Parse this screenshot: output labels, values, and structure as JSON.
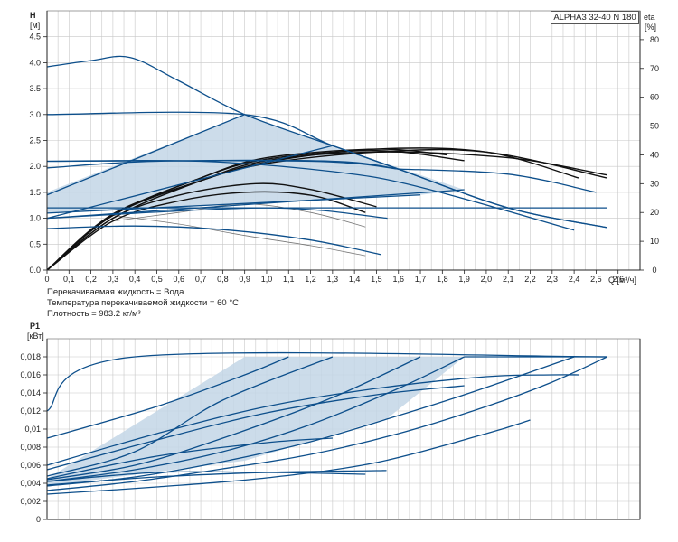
{
  "model": "ALPHA3 32-40 N 180",
  "notes": {
    "liquid": "Перекачиваемая жидкость = Вода",
    "temperature": "Температура перекачиваемой жидкости = 60 °C",
    "density": "Плотность = 983.2 кг/м³"
  },
  "colors": {
    "curve": "#0d4f8b",
    "eta": "#111111",
    "shade": "#c3d6e6",
    "grid": "#c8c8c8"
  },
  "chart_data": [
    {
      "type": "line",
      "xlabel": "Q [м³/ч]",
      "ylabel": "H [м]",
      "y2label": "eta [%]",
      "xlim": [
        0,
        2.7
      ],
      "ylim": [
        0,
        5
      ],
      "y2lim": [
        0,
        90
      ],
      "x_ticks": [
        {
          "v": 0,
          "t": "0"
        },
        {
          "v": 0.1,
          "t": "0,1"
        },
        {
          "v": 0.2,
          "t": "0,2"
        },
        {
          "v": 0.3,
          "t": "0,3"
        },
        {
          "v": 0.4,
          "t": "0,4"
        },
        {
          "v": 0.5,
          "t": "0,5"
        },
        {
          "v": 0.6,
          "t": "0,6"
        },
        {
          "v": 0.7,
          "t": "0,7"
        },
        {
          "v": 0.8,
          "t": "0,8"
        },
        {
          "v": 0.9,
          "t": "0,9"
        },
        {
          "v": 1.0,
          "t": "1,0"
        },
        {
          "v": 1.1,
          "t": "1,1"
        },
        {
          "v": 1.2,
          "t": "1,2"
        },
        {
          "v": 1.3,
          "t": "1,3"
        },
        {
          "v": 1.4,
          "t": "1,4"
        },
        {
          "v": 1.5,
          "t": "1,5"
        },
        {
          "v": 1.6,
          "t": "1,6"
        },
        {
          "v": 1.7,
          "t": "1,7"
        },
        {
          "v": 1.8,
          "t": "1,8"
        },
        {
          "v": 1.9,
          "t": "1,9"
        },
        {
          "v": 2.0,
          "t": "2,0"
        },
        {
          "v": 2.1,
          "t": "2,1"
        },
        {
          "v": 2.2,
          "t": "2,2"
        },
        {
          "v": 2.3,
          "t": "2,3"
        },
        {
          "v": 2.4,
          "t": "2,4"
        },
        {
          "v": 2.5,
          "t": "2,5"
        },
        {
          "v": 2.6,
          "t": "2,6"
        }
      ],
      "y_ticks": [
        {
          "v": 0,
          "t": "0.0"
        },
        {
          "v": 0.5,
          "t": "0.5"
        },
        {
          "v": 1,
          "t": "1.0"
        },
        {
          "v": 1.5,
          "t": "1.5"
        },
        {
          "v": 2,
          "t": "2.0"
        },
        {
          "v": 2.5,
          "t": "2.5"
        },
        {
          "v": 3,
          "t": "3.0"
        },
        {
          "v": 3.5,
          "t": "3.5"
        },
        {
          "v": 4,
          "t": "4.0"
        },
        {
          "v": 4.5,
          "t": "4.5"
        }
      ],
      "y2_ticks": [
        {
          "v": 0,
          "t": "0"
        },
        {
          "v": 10,
          "t": "10"
        },
        {
          "v": 20,
          "t": "20"
        },
        {
          "v": 30,
          "t": "30"
        },
        {
          "v": 40,
          "t": "40"
        },
        {
          "v": 50,
          "t": "50"
        },
        {
          "v": 60,
          "t": "60"
        },
        {
          "v": 70,
          "t": "70"
        },
        {
          "v": 80,
          "t": "80"
        }
      ],
      "shaded_region": [
        [
          0,
          1.0
        ],
        [
          0,
          1.5
        ],
        [
          0.9,
          3.0
        ],
        [
          1.3,
          2.4
        ],
        [
          1.9,
          1.55
        ],
        [
          1.7,
          1.45
        ],
        [
          0,
          1.1
        ]
      ],
      "head_curves": [
        [
          [
            0,
            3.92
          ],
          [
            0.2,
            4.04
          ],
          [
            0.38,
            4.1
          ],
          [
            0.6,
            3.65
          ],
          [
            0.9,
            3.0
          ],
          [
            1.3,
            2.4
          ],
          [
            1.6,
            1.95
          ],
          [
            2.1,
            1.2
          ],
          [
            2.55,
            0.82
          ]
        ],
        [
          [
            0,
            3.0
          ],
          [
            0.9,
            3.0
          ],
          [
            1.3,
            2.4
          ],
          [
            1.6,
            1.95
          ],
          [
            2.1,
            1.2
          ],
          [
            2.55,
            0.82
          ]
        ],
        [
          [
            0,
            1.45
          ],
          [
            0.9,
            3.0
          ]
        ],
        [
          [
            0,
            2.1
          ],
          [
            1.2,
            2.1
          ],
          [
            1.6,
            1.95
          ]
        ],
        [
          [
            0,
            1.0
          ],
          [
            1.3,
            2.4
          ]
        ],
        [
          [
            0,
            2.1
          ],
          [
            0.7,
            2.1
          ],
          [
            1.3,
            1.9
          ],
          [
            1.7,
            1.6
          ],
          [
            2.4,
            0.77
          ]
        ],
        [
          [
            0,
            1.97
          ],
          [
            0.5,
            2.1
          ],
          [
            1.3,
            2.1
          ],
          [
            1.6,
            1.95
          ]
        ],
        [
          [
            0,
            1.2
          ],
          [
            1.9,
            1.2
          ]
        ],
        [
          [
            0,
            1.1
          ],
          [
            1.7,
            1.45
          ]
        ],
        [
          [
            0,
            1.0
          ],
          [
            1.9,
            1.55
          ]
        ],
        [
          [
            0,
            1.0
          ],
          [
            1.0,
            1.2
          ],
          [
            1.55,
            1.0
          ]
        ],
        [
          [
            0,
            0.8
          ],
          [
            0.4,
            0.85
          ],
          [
            0.8,
            0.78
          ],
          [
            1.2,
            0.58
          ],
          [
            1.52,
            0.3
          ]
        ],
        [
          [
            1.9,
            1.2
          ],
          [
            2.55,
            1.2
          ]
        ],
        [
          [
            1.6,
            1.95
          ],
          [
            2.1,
            1.85
          ],
          [
            2.5,
            1.5
          ]
        ]
      ],
      "eta_curves": [
        [
          [
            0,
            0
          ],
          [
            0.3,
            19
          ],
          [
            0.7,
            31
          ],
          [
            1.0,
            37
          ],
          [
            1.5,
            41
          ],
          [
            2.0,
            41
          ],
          [
            2.55,
            32
          ]
        ],
        [
          [
            0,
            0
          ],
          [
            0.3,
            19.5
          ],
          [
            0.7,
            31
          ],
          [
            1.0,
            37.5
          ],
          [
            1.5,
            42
          ],
          [
            2.0,
            41
          ],
          [
            2.42,
            32
          ]
        ],
        [
          [
            0,
            0
          ],
          [
            0.3,
            19
          ],
          [
            0.7,
            32
          ],
          [
            1.0,
            38.5
          ],
          [
            1.5,
            41.5
          ],
          [
            1.9,
            38
          ]
        ],
        [
          [
            0,
            0
          ],
          [
            0.3,
            19
          ],
          [
            0.7,
            32
          ],
          [
            1.0,
            39
          ],
          [
            1.5,
            42
          ],
          [
            1.82,
            40
          ]
        ],
        [
          [
            0,
            0
          ],
          [
            0.3,
            18
          ],
          [
            0.7,
            31
          ],
          [
            1.0,
            38
          ],
          [
            1.5,
            41
          ],
          [
            2.1,
            39
          ],
          [
            2.55,
            33
          ]
        ],
        [
          [
            0,
            0
          ],
          [
            0.3,
            18
          ],
          [
            0.6,
            26
          ],
          [
            0.95,
            30
          ],
          [
            1.2,
            28
          ],
          [
            1.5,
            22
          ]
        ],
        [
          [
            0,
            0
          ],
          [
            0.3,
            17
          ],
          [
            0.6,
            24
          ],
          [
            0.9,
            27
          ],
          [
            1.2,
            26
          ],
          [
            1.45,
            20
          ]
        ]
      ],
      "thin_curves": [
        [
          [
            0.3,
            17
          ],
          [
            0.6,
            20
          ],
          [
            0.9,
            23
          ],
          [
            1.2,
            20
          ],
          [
            1.45,
            15
          ]
        ],
        [
          [
            0.3,
            19
          ],
          [
            0.6,
            16
          ],
          [
            0.9,
            12
          ],
          [
            1.2,
            8.5
          ],
          [
            1.45,
            5
          ]
        ]
      ]
    },
    {
      "type": "line",
      "ylabel": "P1 [кВт]",
      "xlim": [
        0,
        2.7
      ],
      "ylim": [
        0,
        0.02
      ],
      "y_ticks": [
        {
          "v": 0,
          "t": "0"
        },
        {
          "v": 0.002,
          "t": "0,002"
        },
        {
          "v": 0.004,
          "t": "0,004"
        },
        {
          "v": 0.006,
          "t": "0,006"
        },
        {
          "v": 0.008,
          "t": "0,008"
        },
        {
          "v": 0.01,
          "t": "0,01"
        },
        {
          "v": 0.012,
          "t": "0,012"
        },
        {
          "v": 0.014,
          "t": "0,014"
        },
        {
          "v": 0.016,
          "t": "0,016"
        },
        {
          "v": 0.018,
          "t": "0,018"
        }
      ],
      "shaded_region": [
        [
          0,
          0.0045
        ],
        [
          0.9,
          0.018
        ],
        [
          1.9,
          0.018
        ],
        [
          1.55,
          0.0112
        ],
        [
          0.9,
          0.0065
        ],
        [
          0,
          0.0037
        ]
      ],
      "power_curves": [
        [
          [
            0,
            0.012
          ],
          [
            0.4,
            0.018
          ],
          [
            2.55,
            0.018
          ]
        ],
        [
          [
            0,
            0.009
          ],
          [
            0.5,
            0.0125
          ],
          [
            0.9,
            0.016
          ],
          [
            1.1,
            0.018
          ]
        ],
        [
          [
            0,
            0.0048
          ],
          [
            0.4,
            0.0075
          ],
          [
            0.8,
            0.0132
          ],
          [
            1.3,
            0.018
          ]
        ],
        [
          [
            0,
            0.0044
          ],
          [
            0.4,
            0.006
          ],
          [
            0.8,
            0.009
          ],
          [
            1.3,
            0.0135
          ],
          [
            1.7,
            0.018
          ]
        ],
        [
          [
            0,
            0.0042
          ],
          [
            0.4,
            0.0055
          ],
          [
            0.8,
            0.0075
          ],
          [
            1.2,
            0.0105
          ],
          [
            1.6,
            0.0145
          ],
          [
            1.9,
            0.018
          ]
        ],
        [
          [
            0,
            0.0037
          ],
          [
            0.4,
            0.0047
          ],
          [
            0.8,
            0.0064
          ],
          [
            1.2,
            0.0086
          ],
          [
            1.6,
            0.0115
          ],
          [
            1.9,
            0.0138
          ],
          [
            2.2,
            0.0163
          ],
          [
            2.4,
            0.018
          ]
        ],
        [
          [
            0,
            0.0032
          ],
          [
            0.4,
            0.0042
          ],
          [
            0.8,
            0.0056
          ],
          [
            1.2,
            0.0072
          ],
          [
            1.6,
            0.0095
          ],
          [
            2.0,
            0.0125
          ],
          [
            2.3,
            0.0152
          ],
          [
            2.55,
            0.018
          ]
        ],
        [
          [
            0,
            0.0028
          ],
          [
            0.5,
            0.0036
          ],
          [
            1.0,
            0.0046
          ],
          [
            1.5,
            0.0063
          ],
          [
            2.0,
            0.0095
          ],
          [
            2.2,
            0.011
          ]
        ],
        [
          [
            0,
            0.006
          ],
          [
            0.5,
            0.0095
          ],
          [
            1.0,
            0.0125
          ],
          [
            1.5,
            0.0145
          ],
          [
            2.0,
            0.0158
          ],
          [
            2.3,
            0.016
          ],
          [
            2.42,
            0.016
          ]
        ],
        [
          [
            0,
            0.0055
          ],
          [
            0.5,
            0.0088
          ],
          [
            1.0,
            0.0118
          ],
          [
            1.5,
            0.0138
          ],
          [
            1.9,
            0.0148
          ]
        ],
        [
          [
            0,
            0.0045
          ],
          [
            0.5,
            0.007
          ],
          [
            1.0,
            0.0085
          ],
          [
            1.3,
            0.009
          ]
        ],
        [
          [
            0,
            0.0038
          ],
          [
            0.5,
            0.0047
          ],
          [
            1.0,
            0.0052
          ],
          [
            1.5,
            0.0054
          ],
          [
            1.52,
            0.0054
          ]
        ],
        [
          [
            0,
            0.0042
          ],
          [
            0.5,
            0.0052
          ],
          [
            1.0,
            0.0052
          ],
          [
            1.45,
            0.005
          ]
        ],
        [
          [
            1.9,
            0.018
          ],
          [
            2.55,
            0.018
          ]
        ]
      ]
    }
  ]
}
